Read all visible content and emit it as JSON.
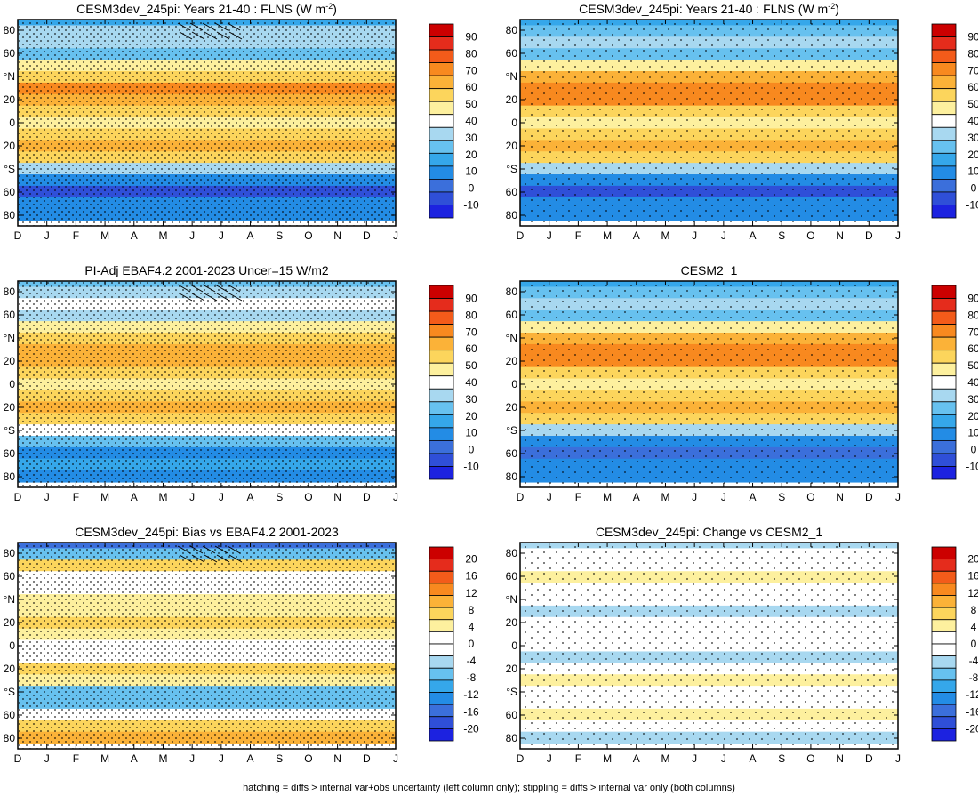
{
  "figure": {
    "footnote": "hatching = diffs > internal var+obs uncertainty (left column only); stippling = diffs > internal var only (both columns)"
  },
  "colorbars": {
    "main": {
      "labels": [
        "90",
        "80",
        "70",
        "60",
        "50",
        "40",
        "30",
        "20",
        "10",
        "0",
        "-10"
      ],
      "colors": [
        "#cc0000",
        "#e52c1c",
        "#f35b1a",
        "#f8891f",
        "#fbb238",
        "#fcd55c",
        "#fdf09e",
        "#ffffff",
        "#a8d8f0",
        "#67c1ef",
        "#35a7ea",
        "#238ce5",
        "#3b6fdb",
        "#2f4fd8",
        "#1c22e0"
      ]
    },
    "diff": {
      "labels": [
        "20",
        "16",
        "12",
        "8",
        "4",
        "0",
        "-4",
        "-8",
        "-12",
        "-16",
        "-20"
      ],
      "colors": [
        "#cc0000",
        "#e52c1c",
        "#f35b1a",
        "#f8891f",
        "#fbb238",
        "#fcd55c",
        "#fdf09e",
        "#ffffff",
        "#ffffff",
        "#a8d8f0",
        "#67c1ef",
        "#35a7ea",
        "#238ce5",
        "#3b6fdb",
        "#2f4fd8",
        "#1c22e0"
      ]
    }
  },
  "axes": {
    "x_ticks": [
      "D",
      "J",
      "F",
      "M",
      "A",
      "M",
      "J",
      "J",
      "A",
      "S",
      "O",
      "N",
      "D",
      "J"
    ],
    "y_ticks": [
      "80",
      "60",
      "°N",
      "20",
      "0",
      "20",
      "°S",
      "60",
      "80"
    ]
  },
  "chart_data": [
    {
      "type": "heatmap",
      "title": "CESM3dev_245pi: Years 21-40 : FLNS (W m",
      "title_sup": "-2",
      "title_end": ")",
      "colorbar": "main",
      "x": [
        "D",
        "J",
        "F",
        "M",
        "A",
        "M",
        "J",
        "J",
        "A",
        "S",
        "O",
        "N",
        "D",
        "J"
      ],
      "y": [
        "80",
        "60",
        "°N",
        "20",
        "0",
        "20",
        "°S",
        "60",
        "80"
      ],
      "bands": [
        [
          -80,
          8
        ],
        [
          -70,
          10
        ],
        [
          -60,
          -2
        ],
        [
          -50,
          10
        ],
        [
          -40,
          32
        ],
        [
          -30,
          52
        ],
        [
          -20,
          62
        ],
        [
          -10,
          55
        ],
        [
          0,
          44
        ],
        [
          10,
          55
        ],
        [
          20,
          63
        ],
        [
          30,
          66
        ],
        [
          40,
          58
        ],
        [
          50,
          48
        ],
        [
          60,
          22
        ],
        [
          70,
          34
        ],
        [
          80,
          30
        ],
        [
          90,
          18
        ]
      ],
      "hatch": true,
      "stipple": "dense"
    },
    {
      "type": "heatmap",
      "title": "CESM3dev_245pi: Years 21-40 : FLNS (W m",
      "title_sup": "-2",
      "title_end": ")",
      "colorbar": "main",
      "x": [
        "D",
        "J",
        "F",
        "M",
        "A",
        "M",
        "J",
        "J",
        "A",
        "S",
        "O",
        "N",
        "D",
        "J"
      ],
      "y": [
        "80",
        "60",
        "°N",
        "20",
        "0",
        "20",
        "°S",
        "60",
        "80"
      ],
      "bands": [
        [
          -80,
          10
        ],
        [
          -70,
          12
        ],
        [
          -60,
          -2
        ],
        [
          -50,
          10
        ],
        [
          -40,
          32
        ],
        [
          -30,
          54
        ],
        [
          -20,
          64
        ],
        [
          -10,
          56
        ],
        [
          0,
          45
        ],
        [
          10,
          56
        ],
        [
          20,
          66
        ],
        [
          30,
          70
        ],
        [
          40,
          60
        ],
        [
          50,
          48
        ],
        [
          60,
          22
        ],
        [
          70,
          33
        ],
        [
          80,
          28
        ],
        [
          90,
          16
        ]
      ],
      "hatch": false,
      "stipple": "sparse"
    },
    {
      "type": "heatmap",
      "title": "PI-Adj EBAF4.2 2001-2023 Uncer=15 W/m2",
      "colorbar": "main",
      "x": [
        "D",
        "J",
        "F",
        "M",
        "A",
        "M",
        "J",
        "J",
        "A",
        "S",
        "O",
        "N",
        "D",
        "J"
      ],
      "y": [
        "80",
        "60",
        "°N",
        "20",
        "0",
        "20",
        "°S",
        "60",
        "80"
      ],
      "bands": [
        [
          -80,
          14
        ],
        [
          -70,
          16
        ],
        [
          -60,
          10
        ],
        [
          -50,
          22
        ],
        [
          -40,
          38
        ],
        [
          -30,
          54
        ],
        [
          -20,
          60
        ],
        [
          -10,
          55
        ],
        [
          0,
          46
        ],
        [
          10,
          55
        ],
        [
          20,
          62
        ],
        [
          30,
          64
        ],
        [
          40,
          58
        ],
        [
          50,
          50
        ],
        [
          60,
          34
        ],
        [
          70,
          40
        ],
        [
          80,
          36
        ],
        [
          90,
          28
        ]
      ],
      "hatch": true,
      "stipple": "dense"
    },
    {
      "type": "heatmap",
      "title": "CESM2_1",
      "colorbar": "main",
      "x": [
        "D",
        "J",
        "F",
        "M",
        "A",
        "M",
        "J",
        "J",
        "A",
        "S",
        "O",
        "N",
        "D",
        "J"
      ],
      "y": [
        "80",
        "60",
        "°N",
        "20",
        "0",
        "20",
        "°S",
        "60",
        "80"
      ],
      "bands": [
        [
          -80,
          10
        ],
        [
          -70,
          14
        ],
        [
          -60,
          2
        ],
        [
          -50,
          12
        ],
        [
          -40,
          34
        ],
        [
          -30,
          55
        ],
        [
          -20,
          64
        ],
        [
          -10,
          56
        ],
        [
          0,
          46
        ],
        [
          10,
          57
        ],
        [
          20,
          67
        ],
        [
          30,
          71
        ],
        [
          40,
          62
        ],
        [
          50,
          50
        ],
        [
          60,
          26
        ],
        [
          70,
          35
        ],
        [
          80,
          28
        ],
        [
          90,
          18
        ]
      ],
      "hatch": false,
      "stipple": "sparse"
    },
    {
      "type": "heatmap",
      "title": "CESM3dev_245pi: Bias vs EBAF4.2 2001-2023",
      "colorbar": "diff",
      "x": [
        "D",
        "J",
        "F",
        "M",
        "A",
        "M",
        "J",
        "J",
        "A",
        "S",
        "O",
        "N",
        "D",
        "J"
      ],
      "y": [
        "80",
        "60",
        "°N",
        "20",
        "0",
        "20",
        "°S",
        "60",
        "80"
      ],
      "bands": [
        [
          -80,
          10
        ],
        [
          -70,
          6
        ],
        [
          -60,
          2
        ],
        [
          -50,
          -8
        ],
        [
          -40,
          -6
        ],
        [
          -30,
          4
        ],
        [
          -20,
          6
        ],
        [
          -10,
          2
        ],
        [
          0,
          2
        ],
        [
          10,
          4
        ],
        [
          20,
          6
        ],
        [
          30,
          5
        ],
        [
          40,
          3
        ],
        [
          50,
          2
        ],
        [
          60,
          -2
        ],
        [
          70,
          8
        ],
        [
          80,
          -6
        ],
        [
          90,
          -14
        ]
      ],
      "hatch": true,
      "stipple": "dense"
    },
    {
      "type": "heatmap",
      "title": "CESM3dev_245pi: Change vs CESM2_1",
      "colorbar": "diff",
      "x": [
        "D",
        "J",
        "F",
        "M",
        "A",
        "M",
        "J",
        "J",
        "A",
        "S",
        "O",
        "N",
        "D",
        "J"
      ],
      "y": [
        "80",
        "60",
        "°N",
        "20",
        "0",
        "20",
        "°S",
        "60",
        "80"
      ],
      "bands": [
        [
          -80,
          -4
        ],
        [
          -70,
          2
        ],
        [
          -60,
          4
        ],
        [
          -50,
          0
        ],
        [
          -40,
          1
        ],
        [
          -30,
          4
        ],
        [
          -20,
          0
        ],
        [
          -10,
          -3
        ],
        [
          0,
          1
        ],
        [
          10,
          -1
        ],
        [
          20,
          0
        ],
        [
          30,
          -4
        ],
        [
          40,
          -1
        ],
        [
          50,
          1
        ],
        [
          60,
          4
        ],
        [
          70,
          -1
        ],
        [
          80,
          0
        ],
        [
          90,
          -3
        ]
      ],
      "hatch": false,
      "stipple": "sparse"
    }
  ]
}
